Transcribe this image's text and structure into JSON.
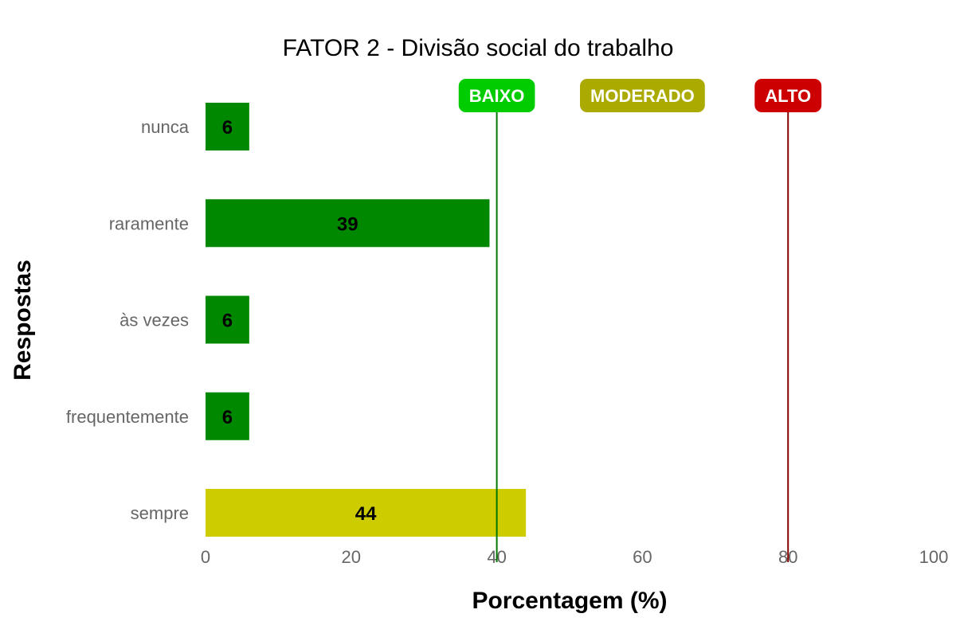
{
  "chart_data": {
    "type": "bar",
    "orientation": "horizontal",
    "title": "FATOR 2 - Divisão social do trabalho",
    "xlabel": "Porcentagem (%)",
    "ylabel": "Respostas",
    "xlim": [
      0,
      100
    ],
    "xticks": [
      "0",
      "20",
      "40",
      "60",
      "80",
      "100"
    ],
    "grid": false,
    "categories": [
      "nunca",
      "raramente",
      "às vezes",
      "frequentemente",
      "sempre"
    ],
    "values": [
      6,
      39,
      6,
      6,
      44
    ],
    "value_labels": [
      "6",
      "39",
      "6",
      "6",
      "44"
    ],
    "bar_colors": [
      "#008800",
      "#008800",
      "#008800",
      "#008800",
      "#cccc00"
    ],
    "thresholds": [
      {
        "label": "BAIXO",
        "value": 40,
        "badge_color": "#00cc00",
        "line_color": "#007700",
        "show_line": true
      },
      {
        "label": "MODERADO",
        "value": 60,
        "badge_color": "#aaaa00",
        "line_color": "#aaaa00",
        "show_line": false
      },
      {
        "label": "ALTO",
        "value": 80,
        "badge_color": "#cc0000",
        "line_color": "#880000",
        "show_line": true
      }
    ]
  }
}
